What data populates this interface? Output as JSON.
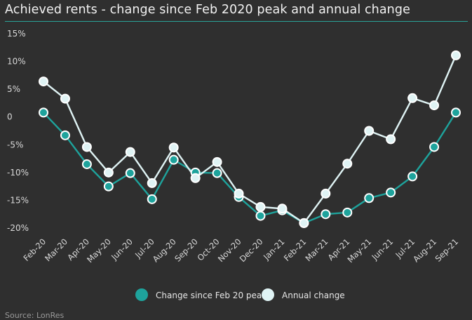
{
  "chart_data": {
    "type": "line",
    "title": "Achieved rents - change since Feb 2020 peak and annual change",
    "x": [
      "Feb-20",
      "Mar-20",
      "Apr-20",
      "May-20",
      "Jun-20",
      "Jul-20",
      "Aug-20",
      "Sep-20",
      "Oct-20",
      "Nov-20",
      "Dec-20",
      "Jan-21",
      "Feb-21",
      "Mar-21",
      "Apr-21",
      "May-21",
      "Jun-21",
      "Jul-21",
      "Aug-21",
      "Sep-21"
    ],
    "y_ticks": [
      "15%",
      "10%",
      "5%",
      "0",
      "-5%",
      "-10%",
      "-15%",
      "-20%"
    ],
    "ylim": [
      -20,
      15
    ],
    "grid": false,
    "legend_position": "bottom",
    "series": [
      {
        "name": "Change since Feb 20 peak",
        "color": "#1ea39c",
        "values": [
          0.8,
          -3.3,
          -8.5,
          -12.5,
          -10.1,
          -14.8,
          -7.7,
          -10.0,
          -10.1,
          -14.4,
          -17.8,
          -16.8,
          -19.1,
          -17.5,
          -17.2,
          -14.6,
          -13.6,
          -10.7,
          -5.4,
          0.8
        ]
      },
      {
        "name": "Annual change",
        "color": "#dff3f4",
        "values": [
          6.4,
          3.3,
          -5.4,
          -10.0,
          -6.3,
          -11.9,
          -5.5,
          -11.0,
          -8.1,
          -13.8,
          -16.2,
          -16.5,
          -19.1,
          -13.8,
          -8.4,
          -2.5,
          -4.0,
          3.4,
          2.1,
          11.1
        ]
      }
    ]
  },
  "source": "Source: LonRes",
  "colors": {
    "background": "#2f2f2f",
    "title_rule": "#2aa39a"
  }
}
